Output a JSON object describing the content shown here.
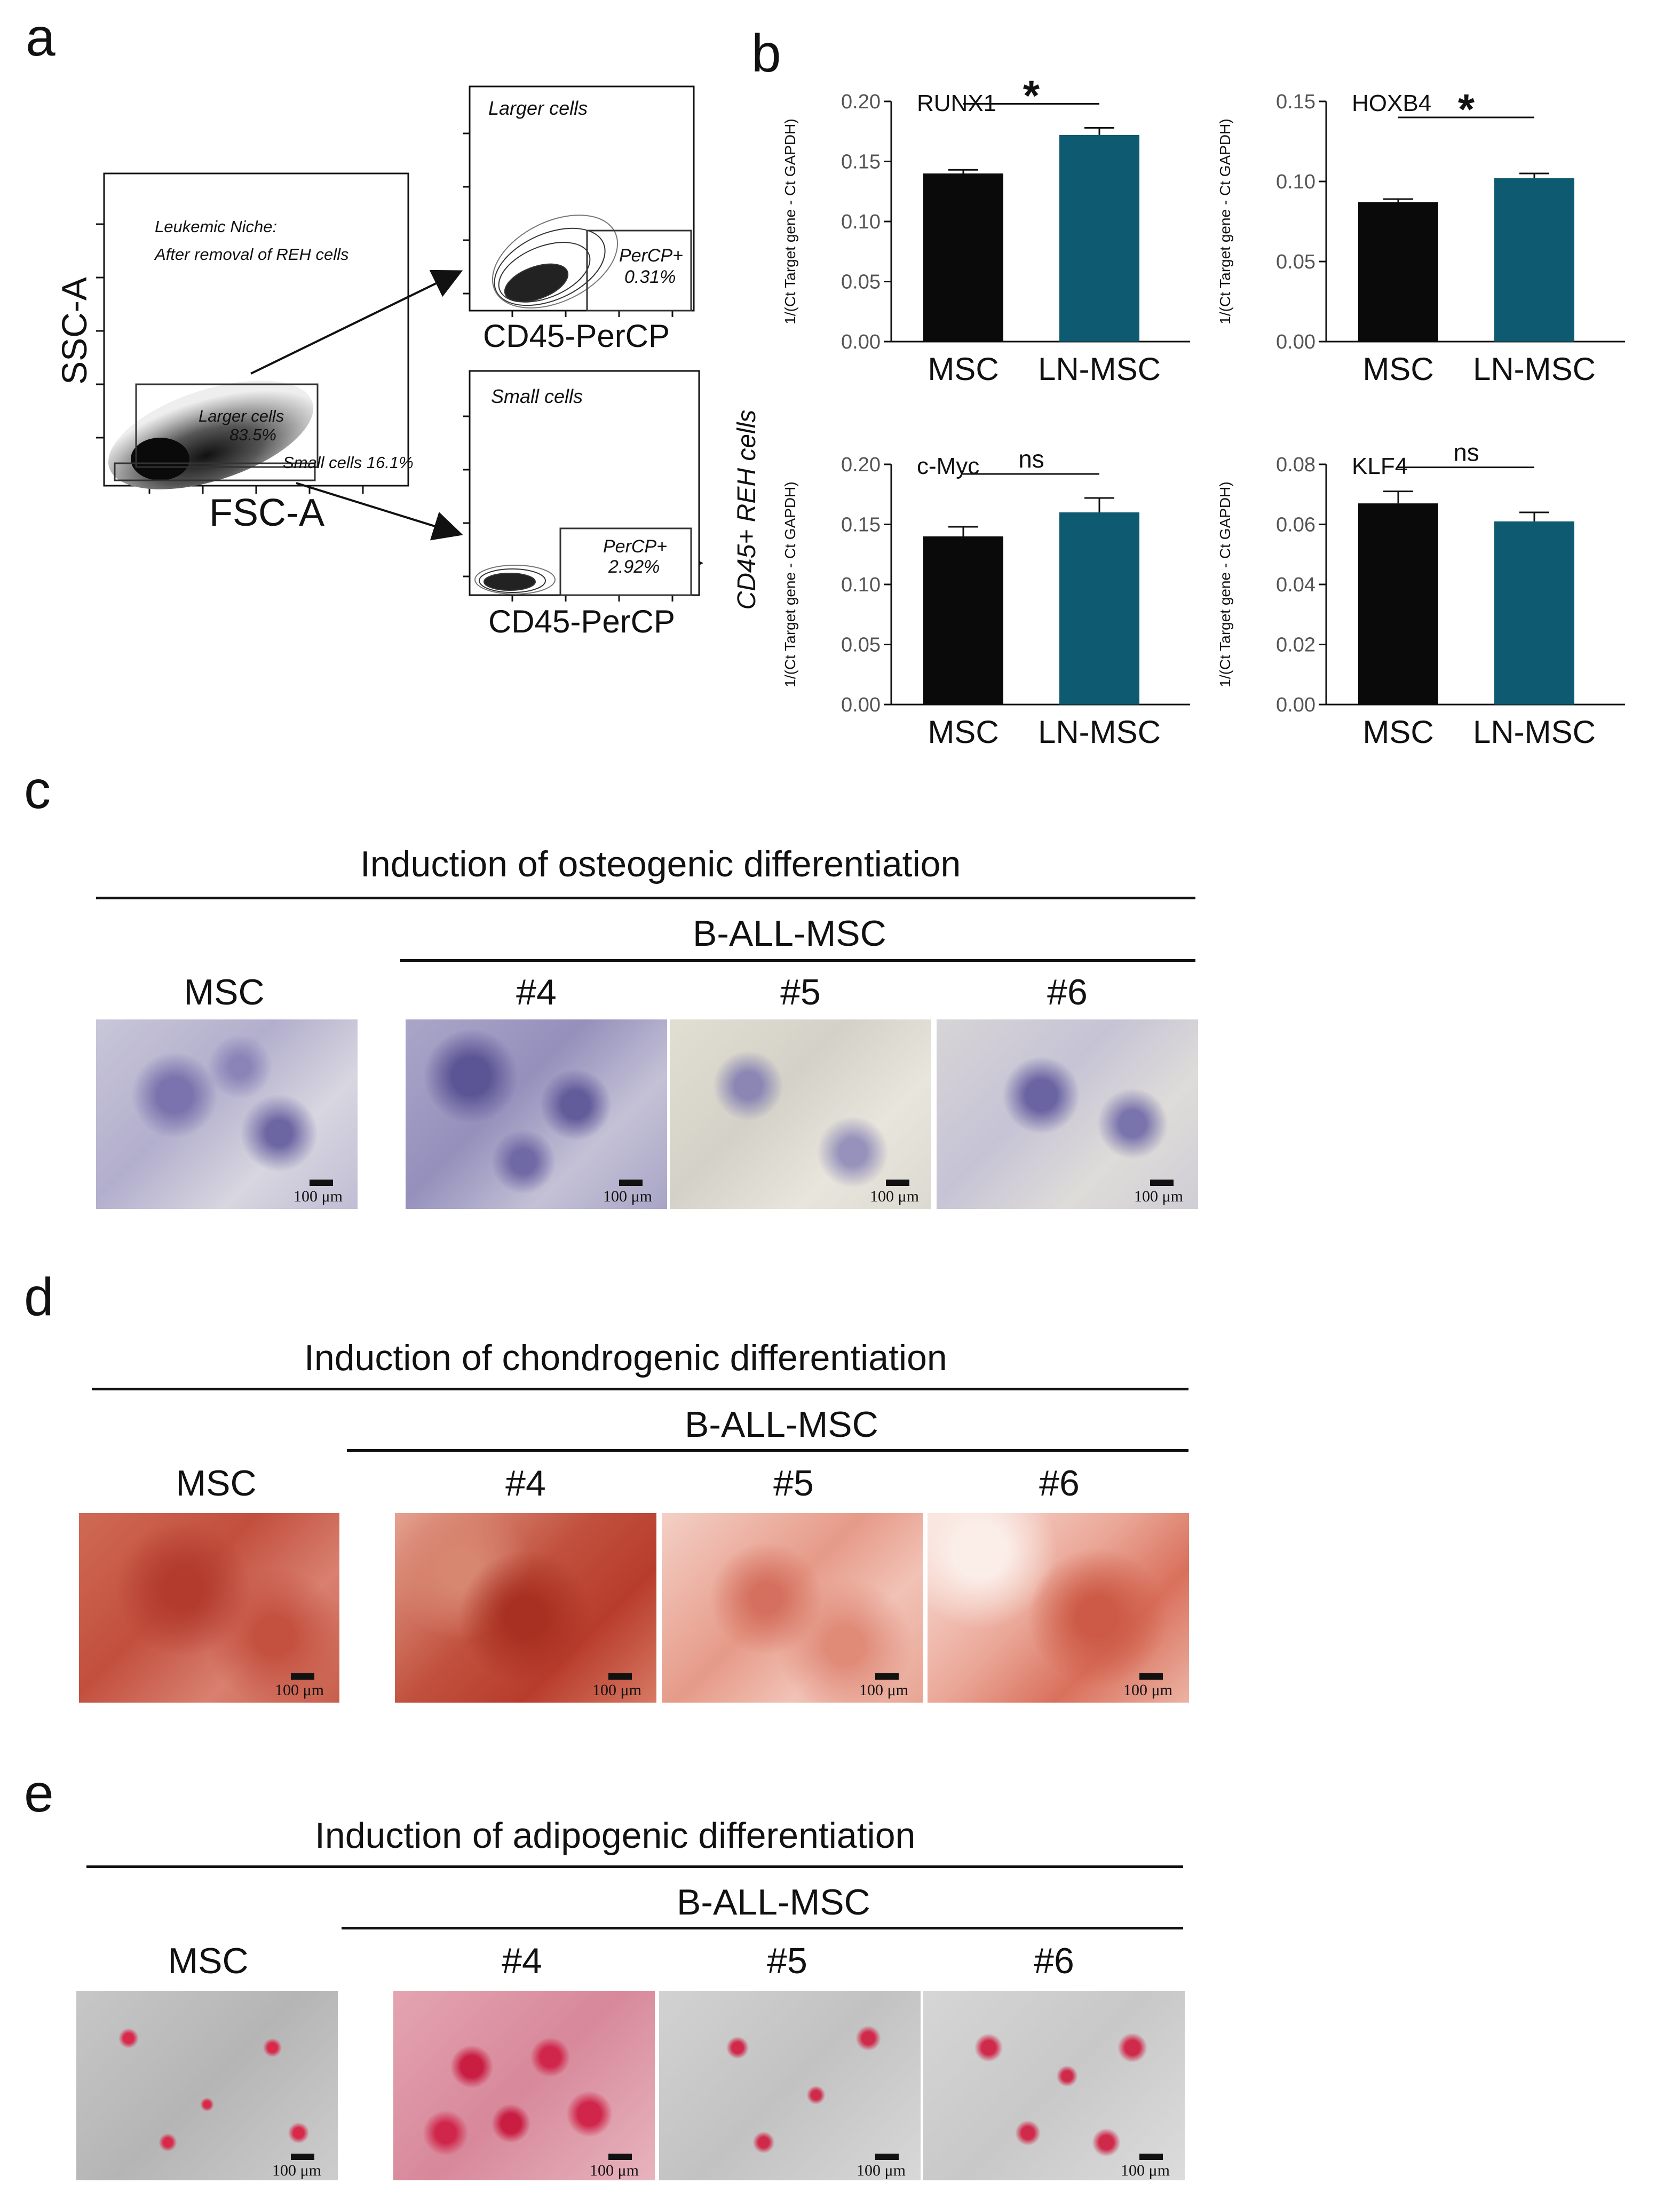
{
  "panels": {
    "a": "a",
    "b": "b",
    "c": "c",
    "d": "d",
    "e": "e"
  },
  "flow": {
    "main": {
      "ylabel": "SSC-A",
      "xlabel": "FSC-A",
      "niche_title_1": "Leukemic Niche:",
      "niche_title_2": "After removal of REH cells",
      "larger_gate": "Larger cells",
      "larger_pct": "83.5%",
      "small_gate": "Small cells 16.1%"
    },
    "top": {
      "title": "Larger cells",
      "gate_label": "PerCP+",
      "gate_pct": "0.31%",
      "xlabel": "CD45-PerCP"
    },
    "bottom": {
      "title": "Small cells",
      "gate_label": "PerCP+",
      "gate_pct": "2.92%",
      "xlabel": "CD45-PerCP"
    },
    "side_label": "CD45+ REH cells"
  },
  "chart_data": [
    {
      "type": "bar",
      "title": "RUNX1",
      "categories": [
        "MSC",
        "LN-MSC"
      ],
      "values": [
        0.14,
        0.172
      ],
      "errors": [
        0.003,
        0.006
      ],
      "ylabel": "1/(Ct Target gene - Ct GAPDH)",
      "ylim": [
        0,
        0.2
      ],
      "ticks": [
        "0.00",
        "0.05",
        "0.10",
        "0.15",
        "0.20"
      ],
      "significance": "*",
      "colors": [
        "#0a0a0a",
        "#0e5a70"
      ]
    },
    {
      "type": "bar",
      "title": "HOXB4",
      "categories": [
        "MSC",
        "LN-MSC"
      ],
      "values": [
        0.087,
        0.102
      ],
      "errors": [
        0.002,
        0.003
      ],
      "ylabel": "1/(Ct Target gene - Ct GAPDH)",
      "ylim": [
        0,
        0.15
      ],
      "ticks": [
        "0.00",
        "0.05",
        "0.10",
        "0.15"
      ],
      "significance": "*",
      "colors": [
        "#0a0a0a",
        "#0e5a70"
      ]
    },
    {
      "type": "bar",
      "title": "c-Myc",
      "categories": [
        "MSC",
        "LN-MSC"
      ],
      "values": [
        0.14,
        0.16
      ],
      "errors": [
        0.008,
        0.012
      ],
      "ylabel": "1/(Ct Target gene - Ct GAPDH)",
      "ylim": [
        0,
        0.2
      ],
      "ticks": [
        "0.00",
        "0.05",
        "0.10",
        "0.15",
        "0.20"
      ],
      "significance": "ns",
      "colors": [
        "#0a0a0a",
        "#0e5a70"
      ]
    },
    {
      "type": "bar",
      "title": "KLF4",
      "categories": [
        "MSC",
        "LN-MSC"
      ],
      "values": [
        0.067,
        0.061
      ],
      "errors": [
        0.004,
        0.003
      ],
      "ylabel": "1/(Ct Target gene - Ct GAPDH)",
      "ylim": [
        0,
        0.08
      ],
      "ticks": [
        "0.00",
        "0.02",
        "0.04",
        "0.06",
        "0.08"
      ],
      "significance": "ns",
      "colors": [
        "#0a0a0a",
        "#0e5a70"
      ]
    }
  ],
  "osteo": {
    "title": "Induction of osteogenic differentiation",
    "group": "B-ALL-MSC",
    "labels": [
      "MSC",
      "#4",
      "#5",
      "#6"
    ],
    "scale": "100 μm"
  },
  "chondro": {
    "title": "Induction of chondrogenic differentiation",
    "group": "B-ALL-MSC",
    "labels": [
      "MSC",
      "#4",
      "#5",
      "#6"
    ],
    "scale": "100 μm"
  },
  "adipo": {
    "title": "Induction of adipogenic differentiation",
    "group": "B-ALL-MSC",
    "labels": [
      "MSC",
      "#4",
      "#5",
      "#6"
    ],
    "scale": "100 μm"
  }
}
